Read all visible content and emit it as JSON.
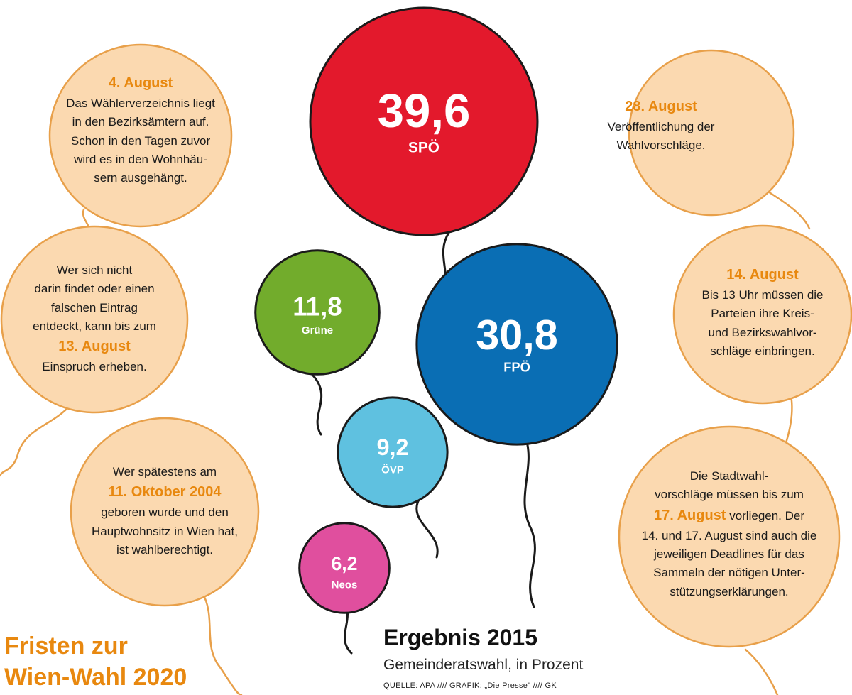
{
  "title": [
    "Fristen zur",
    "Wien-Wahl 2020"
  ],
  "notes": {
    "aug4": {
      "date": "4. August",
      "lines": [
        "Das Wählerverzeichnis liegt",
        "in den Bezirksämtern auf.",
        "Schon in den Tagen zuvor",
        "wird es in den Wohnhäu-",
        "sern ausgehängt."
      ]
    },
    "einspruch": {
      "lines_before": [
        "Wer sich nicht",
        "darin findet oder einen",
        "falschen Eintrag",
        "entdeckt, kann bis zum"
      ],
      "date": "13. August",
      "lines_after": [
        "Einspruch erheben."
      ]
    },
    "wahlberechtigt": {
      "lines_before": [
        "Wer spätestens am"
      ],
      "date": "11. Oktober 2004",
      "lines_after": [
        "geboren wurde und den",
        "Hauptwohnsitz in Wien hat,",
        "ist wahlberechtigt."
      ]
    },
    "aug28": {
      "date": "28. August",
      "lines": [
        "Veröffentlichung der",
        "Wahlvorschläge."
      ]
    },
    "aug14": {
      "date": "14. August",
      "lines": [
        "Bis 13 Uhr müssen die",
        "Parteien ihre Kreis-",
        "und Bezirkswahlvor-",
        "schläge einbringen."
      ]
    },
    "stadtwahl": {
      "lines_before": [
        "Die Stadtwahl-",
        "vorschläge müssen bis zum"
      ],
      "date": "17. August",
      "date_suffix": " vorliegen. Der",
      "lines_after": [
        "14. und 17. August sind auch die",
        "jeweiligen Deadlines für das",
        "Sammeln der nötigen Unter-",
        "stützungserklärungen."
      ]
    }
  },
  "chart_data": {
    "type": "bubble",
    "title": "Ergebnis 2015",
    "subtitle": "Gemeinderatswahl, in Prozent",
    "source": "QUELLE: APA //// GRAFIK: „Die Presse\" //// GK",
    "categories": [
      "SPÖ",
      "FPÖ",
      "Grüne",
      "ÖVP",
      "Neos"
    ],
    "values": [
      "39,6",
      "30,8",
      "11,8",
      "9,2",
      "6,2"
    ],
    "colors": [
      "#e3192c",
      "#0a6eb4",
      "#72ac2c",
      "#5fc1e0",
      "#e04f9e"
    ]
  },
  "colors": {
    "note_fill": "#fbd9b0",
    "accent": "#e8880f"
  }
}
